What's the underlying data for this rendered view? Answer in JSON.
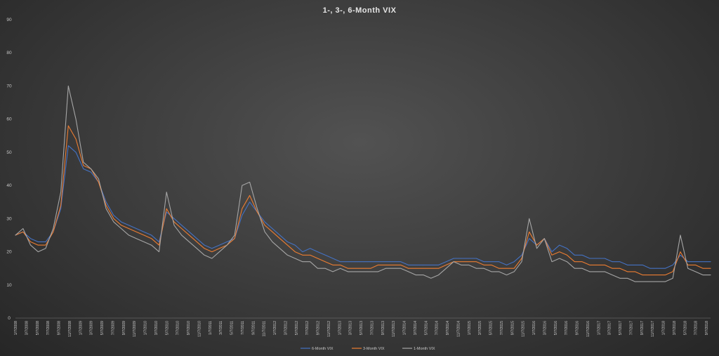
{
  "chart_data": {
    "type": "line",
    "title": "1-, 3-, 6-Month  VIX",
    "xlabel": "",
    "ylabel": "",
    "ylim": [
      0,
      90
    ],
    "yticks": [
      0,
      10,
      20,
      30,
      40,
      50,
      60,
      70,
      80,
      90
    ],
    "grid": false,
    "legend_position": "bottom",
    "xtick_labels": [
      "1/7/2008",
      "3/7/2008",
      "5/7/2008",
      "7/7/2008",
      "9/7/2008",
      "11/7/2008",
      "1/7/2009",
      "3/7/2009",
      "5/7/2009",
      "7/7/2009",
      "9/7/2009",
      "11/7/2009",
      "1/7/2010",
      "3/7/2010",
      "5/7/2010",
      "7/7/2010",
      "9/7/2010",
      "11/7/2010",
      "1/7/2011",
      "3/7/2011",
      "5/7/2011",
      "7/7/2011",
      "9/7/2011",
      "11/7/2011",
      "1/7/2012",
      "3/7/2012",
      "5/7/2012",
      "7/7/2012",
      "9/7/2012",
      "11/7/2012",
      "1/7/2013",
      "3/7/2013",
      "5/7/2013",
      "7/7/2013",
      "9/7/2013",
      "11/7/2013",
      "1/7/2014",
      "3/7/2014",
      "5/7/2014",
      "7/7/2014",
      "9/7/2014",
      "11/7/2014",
      "1/7/2015",
      "3/7/2015",
      "5/7/2015",
      "7/7/2015",
      "9/7/2015",
      "11/7/2015",
      "1/7/2016",
      "3/7/2016",
      "5/7/2016",
      "7/7/2016",
      "9/7/2016",
      "11/7/2016",
      "1/7/2017",
      "3/7/2017",
      "5/7/2017",
      "7/7/2017",
      "9/7/2017",
      "11/7/2017",
      "1/7/2018",
      "3/7/2018",
      "5/7/2018",
      "7/7/2018",
      "9/7/2018"
    ],
    "series": [
      {
        "name": "6-Month VIX",
        "color": "#4472c4",
        "values": [
          25,
          26,
          24,
          23,
          23,
          26,
          33,
          52,
          50,
          45,
          44,
          41,
          35,
          31,
          29,
          28,
          27,
          26,
          25,
          23,
          32,
          30,
          28,
          26,
          24,
          22,
          21,
          22,
          23,
          24,
          31,
          35,
          32,
          29,
          27,
          25,
          23,
          22,
          20,
          21,
          20,
          19,
          18,
          17,
          17,
          17,
          17,
          17,
          17,
          17,
          17,
          17,
          16,
          16,
          16,
          16,
          16,
          17,
          18,
          18,
          18,
          18,
          17,
          17,
          17,
          16,
          17,
          19,
          24,
          22,
          24,
          20,
          22,
          21,
          19,
          19,
          18,
          18,
          18,
          17,
          17,
          16,
          16,
          16,
          15,
          15,
          15,
          16,
          19,
          17,
          17,
          17,
          17
        ]
      },
      {
        "name": "3-Month VIX",
        "color": "#ed7d31",
        "values": [
          25,
          26,
          23,
          22,
          22,
          26,
          34,
          58,
          54,
          46,
          45,
          41,
          34,
          30,
          28,
          27,
          26,
          25,
          24,
          22,
          33,
          29,
          27,
          25,
          23,
          21,
          20,
          21,
          22,
          24,
          33,
          37,
          32,
          28,
          26,
          24,
          22,
          20,
          19,
          19,
          18,
          17,
          16,
          16,
          15,
          15,
          15,
          15,
          16,
          16,
          16,
          16,
          15,
          15,
          15,
          15,
          15,
          16,
          17,
          17,
          17,
          17,
          16,
          16,
          15,
          15,
          15,
          18,
          26,
          22,
          24,
          19,
          20,
          19,
          17,
          17,
          16,
          16,
          16,
          15,
          15,
          14,
          14,
          13,
          13,
          13,
          13,
          14,
          20,
          16,
          16,
          15,
          15
        ]
      },
      {
        "name": "1-Month VIX",
        "color": "#a6a6a6",
        "values": [
          25,
          27,
          22,
          20,
          21,
          27,
          38,
          70,
          60,
          47,
          45,
          42,
          33,
          29,
          27,
          25,
          24,
          23,
          22,
          20,
          38,
          28,
          25,
          23,
          21,
          19,
          18,
          20,
          22,
          25,
          40,
          41,
          33,
          26,
          23,
          21,
          19,
          18,
          17,
          17,
          15,
          15,
          14,
          15,
          14,
          14,
          14,
          14,
          14,
          15,
          15,
          15,
          14,
          13,
          13,
          12,
          13,
          15,
          17,
          16,
          16,
          15,
          15,
          14,
          14,
          13,
          14,
          17,
          30,
          21,
          24,
          17,
          18,
          17,
          15,
          15,
          14,
          14,
          14,
          13,
          12,
          12,
          11,
          11,
          11,
          11,
          11,
          12,
          25,
          15,
          14,
          13,
          13
        ]
      }
    ]
  }
}
